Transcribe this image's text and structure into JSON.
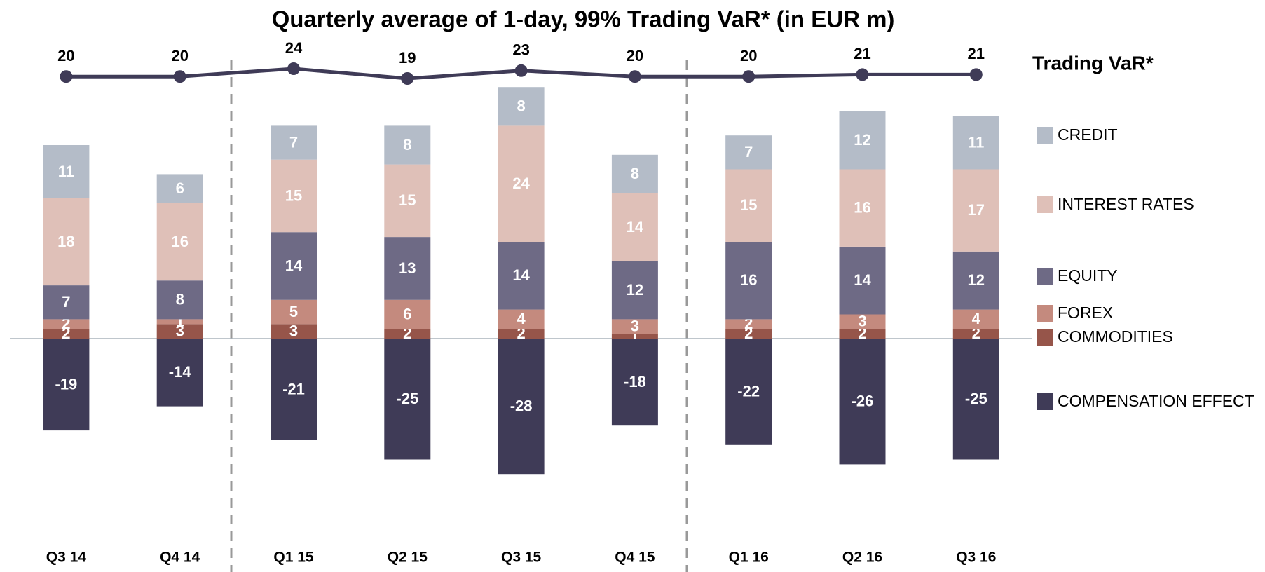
{
  "chart_data": {
    "type": "bar",
    "stacked": true,
    "title": "Quarterly average of 1-day, 99% Trading VaR* (in EUR m)",
    "categories": [
      "Q3 14",
      "Q4 14",
      "Q1 15",
      "Q2 15",
      "Q3 15",
      "Q4 15",
      "Q1 16",
      "Q2 16",
      "Q3 16"
    ],
    "series": [
      {
        "name": "COMMODITIES",
        "color": "#96554a",
        "values": [
          2,
          3,
          3,
          2,
          2,
          1,
          2,
          2,
          2
        ]
      },
      {
        "name": "FOREX",
        "color": "#c48a7e",
        "values": [
          2,
          1,
          5,
          6,
          4,
          3,
          2,
          3,
          4
        ]
      },
      {
        "name": "EQUITY",
        "color": "#6e6a85",
        "values": [
          7,
          8,
          14,
          13,
          14,
          12,
          16,
          14,
          12
        ]
      },
      {
        "name": "INTEREST RATES",
        "color": "#dfc0b8",
        "values": [
          18,
          16,
          15,
          15,
          24,
          14,
          15,
          16,
          17
        ]
      },
      {
        "name": "CREDIT",
        "color": "#b4bcc8",
        "values": [
          11,
          6,
          7,
          8,
          8,
          8,
          7,
          12,
          11
        ]
      },
      {
        "name": "COMPENSATION EFFECT",
        "color": "#3f3b57",
        "values": [
          -19,
          -14,
          -21,
          -25,
          -28,
          -18,
          -22,
          -26,
          -25
        ]
      },
      {
        "name": "Trading VaR*",
        "type": "line",
        "color": "#3f3b57",
        "values": [
          20,
          20,
          24,
          19,
          23,
          20,
          20,
          21,
          21
        ]
      }
    ]
  }
}
